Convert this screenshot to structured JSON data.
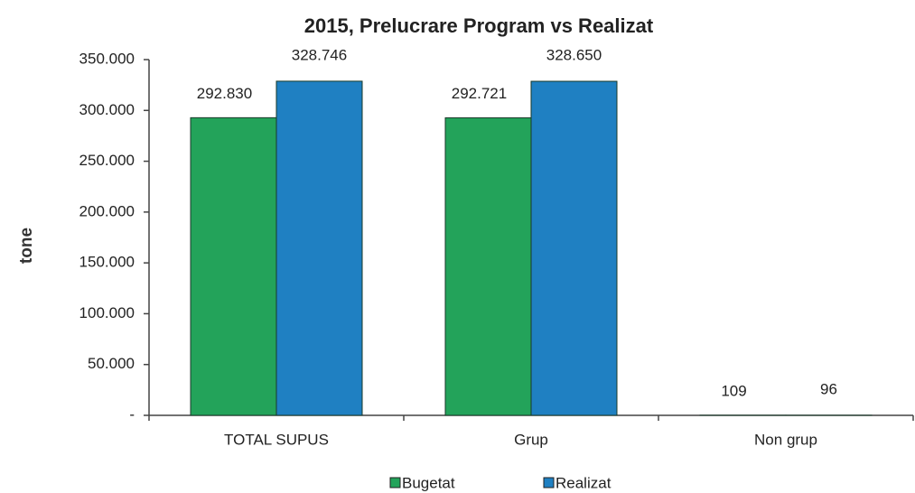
{
  "chart_data": {
    "type": "bar",
    "title": "2015, Prelucrare Program vs Realizat",
    "y_label": "tone",
    "categories": [
      "TOTAL SUPUS",
      "Grup",
      "Non grup"
    ],
    "series": [
      {
        "name": "Bugetat",
        "color": "#23a35a",
        "values": [
          292830,
          292721,
          109
        ],
        "value_labels": [
          "292.830",
          "292.721",
          "109"
        ]
      },
      {
        "name": "Realizat",
        "color": "#1f80c2",
        "values": [
          328746,
          328650,
          96
        ],
        "value_labels": [
          "328.746",
          "328.650",
          "96"
        ]
      }
    ],
    "ylim": [
      0,
      350000
    ],
    "yticks": [
      {
        "value": 0,
        "label": "-"
      },
      {
        "value": 50000,
        "label": "50.000"
      },
      {
        "value": 100000,
        "label": "100.000"
      },
      {
        "value": 150000,
        "label": "150.000"
      },
      {
        "value": 200000,
        "label": "200.000"
      },
      {
        "value": 250000,
        "label": "250.000"
      },
      {
        "value": 300000,
        "label": "300.000"
      },
      {
        "value": 350000,
        "label": "350.000"
      }
    ],
    "grid": false,
    "legend": "bottom"
  }
}
